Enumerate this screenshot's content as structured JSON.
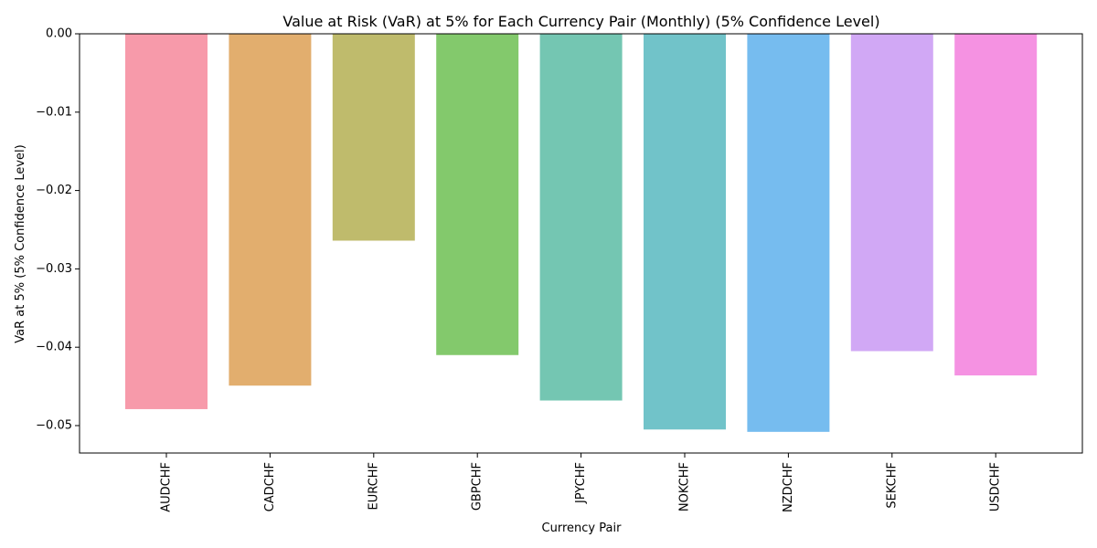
{
  "chart_data": {
    "type": "bar",
    "title": "Value at Risk (VaR) at 5% for Each Currency Pair (Monthly) (5% Confidence Level)",
    "xlabel": "Currency Pair",
    "ylabel": "VaR at 5% (5% Confidence Level)",
    "categories": [
      "AUDCHF",
      "CADCHF",
      "EURCHF",
      "GBPCHF",
      "JPYCHF",
      "NOKCHF",
      "NZDCHF",
      "SEKCHF",
      "USDCHF"
    ],
    "values": [
      -0.0479,
      -0.0449,
      -0.0264,
      -0.041,
      -0.0468,
      -0.0505,
      -0.0508,
      -0.0405,
      -0.0436
    ],
    "colors": [
      "#f79aaa",
      "#e2ae6e",
      "#bfbb6c",
      "#83c96c",
      "#74c6b2",
      "#71c3c9",
      "#76bcef",
      "#d1a8f5",
      "#f592e2"
    ],
    "ylim": [
      -0.0535,
      0.0
    ],
    "yticks": [
      0.0,
      -0.01,
      -0.02,
      -0.03,
      -0.04,
      -0.05
    ],
    "ytick_labels": [
      "0.00",
      "−0.01",
      "−0.02",
      "−0.03",
      "−0.04",
      "−0.05"
    ],
    "grid": false,
    "legend": false
  }
}
